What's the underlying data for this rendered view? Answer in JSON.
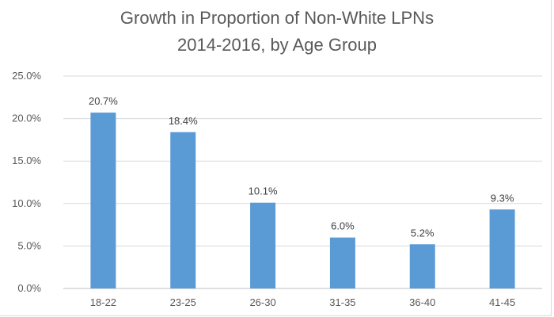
{
  "chart_data": {
    "type": "bar",
    "title_line1": "Growth in Proportion of Non-White LPNs",
    "title_line2": "2014-2016, by Age Group",
    "categories": [
      "18-22",
      "23-25",
      "26-30",
      "31-35",
      "36-40",
      "41-45"
    ],
    "values": [
      20.7,
      18.4,
      10.1,
      6.0,
      5.2,
      9.3
    ],
    "data_labels": [
      "20.7%",
      "18.4%",
      "10.1%",
      "6.0%",
      "5.2%",
      "9.3%"
    ],
    "y_ticks": [
      0,
      5,
      10,
      15,
      20,
      25
    ],
    "y_tick_labels": [
      "0.0%",
      "5.0%",
      "10.0%",
      "15.0%",
      "20.0%",
      "25.0%"
    ],
    "ylim": [
      0,
      25
    ],
    "xlabel": "",
    "ylabel": "",
    "grid": true,
    "bar_color": "#5b9bd5",
    "grid_color": "#d9d9d9"
  }
}
